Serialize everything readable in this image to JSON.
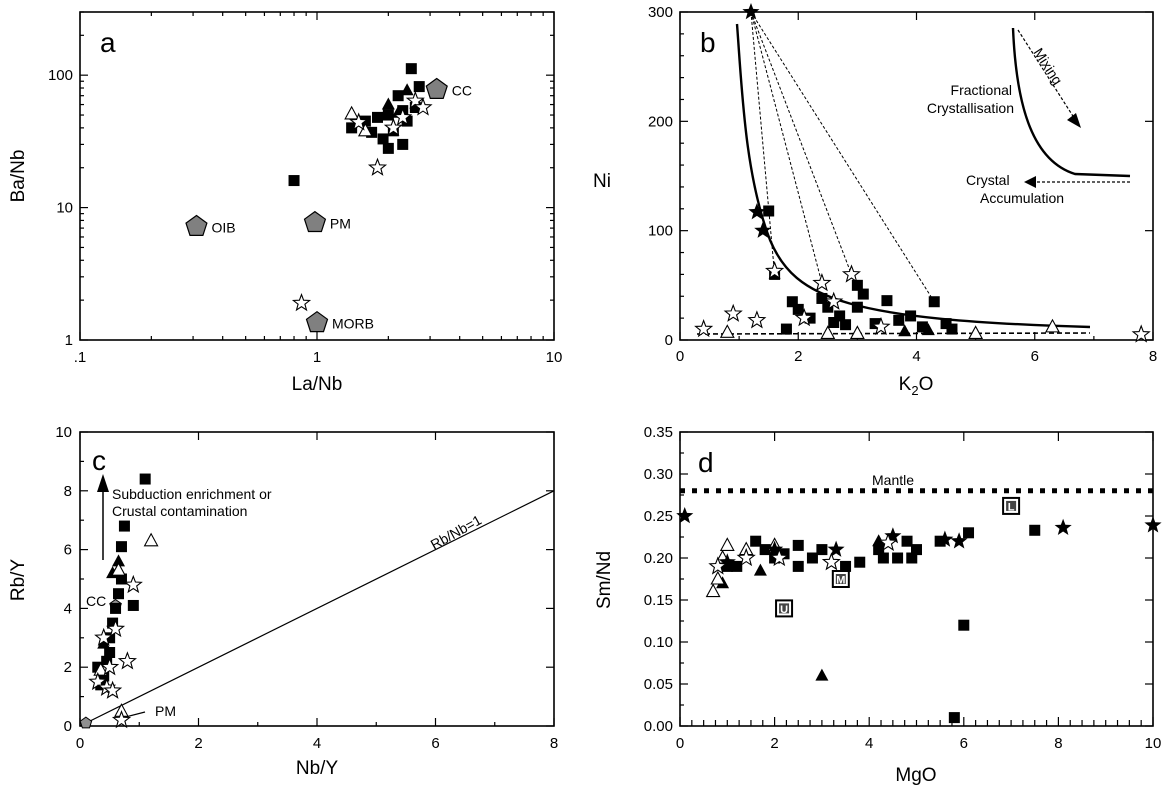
{
  "chart_data": [
    {
      "panel": "a",
      "type": "scatter",
      "xlabel": "La/Nb",
      "ylabel": "Ba/Nb",
      "xscale": "log",
      "yscale": "log",
      "xlim": [
        0.1,
        10
      ],
      "ylim": [
        1,
        300
      ],
      "xticks": [
        ".1",
        "1",
        "10"
      ],
      "yticks": [
        "1",
        "10",
        "100"
      ],
      "reference_points": [
        {
          "label": "CC",
          "x": 3.2,
          "y": 78
        },
        {
          "label": "OIB",
          "x": 0.31,
          "y": 7.2
        },
        {
          "label": "PM",
          "x": 0.98,
          "y": 7.7
        },
        {
          "label": "MORB",
          "x": 1.0,
          "y": 1.35
        }
      ],
      "series": [
        {
          "marker": "square",
          "points": [
            [
              0.8,
              16
            ],
            [
              1.4,
              40
            ],
            [
              1.6,
              45
            ],
            [
              1.8,
              48
            ],
            [
              1.9,
              33
            ],
            [
              2.0,
              28
            ],
            [
              2.1,
              38
            ],
            [
              2.2,
              70
            ],
            [
              2.3,
              54
            ],
            [
              2.4,
              45
            ],
            [
              2.5,
              112
            ],
            [
              2.7,
              82
            ],
            [
              2.6,
              57
            ],
            [
              2.0,
              50
            ],
            [
              1.7,
              37
            ],
            [
              2.3,
              30
            ]
          ]
        },
        {
          "marker": "filled-triangle",
          "points": [
            [
              2.0,
              60
            ],
            [
              2.2,
              52
            ],
            [
              2.4,
              77
            ]
          ]
        },
        {
          "marker": "open-triangle",
          "points": [
            [
              1.4,
              51
            ],
            [
              1.6,
              38
            ]
          ]
        },
        {
          "marker": "open-star",
          "points": [
            [
              0.86,
              1.9
            ],
            [
              1.8,
              20
            ],
            [
              1.5,
              44
            ],
            [
              2.3,
              48
            ],
            [
              2.6,
              64
            ],
            [
              2.8,
              57
            ],
            [
              2.1,
              40
            ]
          ]
        }
      ]
    },
    {
      "panel": "b",
      "type": "scatter",
      "xlabel": "K2O",
      "ylabel": "Ni",
      "xlim": [
        0,
        8
      ],
      "ylim": [
        0,
        300
      ],
      "xticks": [
        "0",
        "2",
        "4",
        "6",
        "8"
      ],
      "yticks": [
        "0",
        "100",
        "200",
        "300"
      ],
      "annotations": [
        "Mixing",
        "Fractional",
        "Crystallisation",
        "Crystal",
        "Accumulation"
      ],
      "series": [
        {
          "marker": "square",
          "points": [
            [
              1.5,
              118
            ],
            [
              1.6,
              60
            ],
            [
              1.8,
              10
            ],
            [
              1.9,
              35
            ],
            [
              2.0,
              28
            ],
            [
              2.2,
              20
            ],
            [
              2.4,
              38
            ],
            [
              2.5,
              30
            ],
            [
              2.7,
              22
            ],
            [
              2.8,
              14
            ],
            [
              3.0,
              50
            ],
            [
              3.1,
              42
            ],
            [
              3.3,
              15
            ],
            [
              3.5,
              36
            ],
            [
              3.7,
              18
            ],
            [
              3.9,
              22
            ],
            [
              4.1,
              12
            ],
            [
              4.3,
              35
            ],
            [
              4.5,
              15
            ],
            [
              4.6,
              10
            ],
            [
              3.0,
              30
            ],
            [
              2.6,
              16
            ]
          ]
        },
        {
          "marker": "filled-star",
          "points": [
            [
              1.2,
              300
            ],
            [
              1.3,
              117
            ],
            [
              1.4,
              100
            ]
          ]
        },
        {
          "marker": "filled-triangle",
          "points": [
            [
              3.8,
              8
            ],
            [
              4.2,
              9
            ]
          ]
        },
        {
          "marker": "open-triangle",
          "points": [
            [
              0.8,
              7
            ],
            [
              2.5,
              6
            ],
            [
              3.0,
              6
            ],
            [
              5.0,
              6
            ],
            [
              6.3,
              12
            ]
          ]
        },
        {
          "marker": "open-star",
          "points": [
            [
              0.4,
              10
            ],
            [
              0.9,
              24
            ],
            [
              1.3,
              18
            ],
            [
              1.6,
              63
            ],
            [
              2.1,
              20
            ],
            [
              2.4,
              52
            ],
            [
              2.6,
              35
            ],
            [
              2.9,
              60
            ],
            [
              3.4,
              12
            ],
            [
              7.8,
              5
            ]
          ]
        }
      ]
    },
    {
      "panel": "c",
      "type": "scatter",
      "xlabel": "Nb/Y",
      "ylabel": "Rb/Y",
      "xlim": [
        0,
        8
      ],
      "ylim": [
        0,
        10
      ],
      "xticks": [
        "0",
        "2",
        "4",
        "6",
        "8"
      ],
      "yticks": [
        "0",
        "2",
        "4",
        "6",
        "8",
        "10"
      ],
      "annotations": [
        "Subduction enrichment or",
        "Crustal contamination",
        "Rb/Nb=1"
      ],
      "reference_points": [
        {
          "label": "CC",
          "x": 0.6,
          "y": 4.1
        },
        {
          "label": "PM",
          "x": 0.1,
          "y": 0.1
        }
      ],
      "series": [
        {
          "marker": "square",
          "points": [
            [
              0.3,
              2.0
            ],
            [
              0.4,
              1.7
            ],
            [
              0.5,
              2.5
            ],
            [
              0.55,
              3.5
            ],
            [
              0.6,
              4.0
            ],
            [
              0.65,
              4.5
            ],
            [
              0.7,
              6.1
            ],
            [
              0.75,
              6.8
            ],
            [
              1.1,
              8.4
            ],
            [
              0.9,
              4.1
            ],
            [
              0.5,
              3.0
            ],
            [
              0.35,
              1.4
            ],
            [
              0.45,
              2.2
            ],
            [
              0.7,
              5.0
            ]
          ]
        },
        {
          "marker": "filled-triangle",
          "points": [
            [
              0.55,
              5.2
            ],
            [
              0.65,
              5.6
            ],
            [
              0.4,
              2.8
            ]
          ]
        },
        {
          "marker": "open-triangle",
          "points": [
            [
              1.2,
              6.3
            ],
            [
              0.65,
              5.3
            ],
            [
              0.7,
              0.5
            ],
            [
              0.35,
              1.9
            ]
          ]
        },
        {
          "marker": "open-star",
          "points": [
            [
              0.3,
              1.5
            ],
            [
              0.45,
              1.3
            ],
            [
              0.55,
              1.2
            ],
            [
              0.7,
              0.2
            ],
            [
              0.8,
              2.2
            ],
            [
              0.9,
              4.8
            ],
            [
              0.6,
              3.3
            ],
            [
              0.4,
              3.0
            ],
            [
              0.5,
              2.0
            ]
          ]
        }
      ]
    },
    {
      "panel": "d",
      "type": "scatter",
      "xlabel": "MgO",
      "ylabel": "Sm/Nd",
      "xlim": [
        0,
        10
      ],
      "ylim": [
        0,
        0.35
      ],
      "xticks": [
        "0",
        "2",
        "4",
        "6",
        "8",
        "10"
      ],
      "yticks": [
        "0.00",
        "0.05",
        "0.10",
        "0.15",
        "0.20",
        "0.25",
        "0.30",
        "0.35"
      ],
      "mantle_line": {
        "label": "Mantle",
        "y": 0.28
      },
      "boxed_points": [
        {
          "label": "L",
          "x": 7.0,
          "y": 0.262
        },
        {
          "label": "M",
          "x": 3.4,
          "y": 0.175
        },
        {
          "label": "U",
          "x": 2.2,
          "y": 0.14
        }
      ],
      "series": [
        {
          "marker": "square",
          "points": [
            [
              1.0,
              0.19
            ],
            [
              1.2,
              0.19
            ],
            [
              1.6,
              0.22
            ],
            [
              1.8,
              0.21
            ],
            [
              2.0,
              0.2
            ],
            [
              2.2,
              0.205
            ],
            [
              2.5,
              0.215
            ],
            [
              2.5,
              0.19
            ],
            [
              2.8,
              0.2
            ],
            [
              3.0,
              0.21
            ],
            [
              3.5,
              0.19
            ],
            [
              3.8,
              0.195
            ],
            [
              4.2,
              0.21
            ],
            [
              4.6,
              0.2
            ],
            [
              4.8,
              0.22
            ],
            [
              5.0,
              0.21
            ],
            [
              5.5,
              0.22
            ],
            [
              5.8,
              0.01
            ],
            [
              6.0,
              0.12
            ],
            [
              6.1,
              0.23
            ],
            [
              7.5,
              0.233
            ],
            [
              4.3,
              0.2
            ],
            [
              4.9,
              0.2
            ]
          ]
        },
        {
          "marker": "filled-triangle",
          "points": [
            [
              0.9,
              0.17
            ],
            [
              1.7,
              0.185
            ],
            [
              3.0,
              0.06
            ],
            [
              4.2,
              0.22
            ]
          ]
        },
        {
          "marker": "open-triangle",
          "points": [
            [
              0.7,
              0.16
            ],
            [
              0.8,
              0.175
            ],
            [
              0.9,
              0.2
            ],
            [
              1.0,
              0.215
            ],
            [
              1.4,
              0.21
            ],
            [
              2.0,
              0.215
            ]
          ]
        },
        {
          "marker": "filled-star",
          "points": [
            [
              0.1,
              0.25
            ],
            [
              1.0,
              0.195
            ],
            [
              2.0,
              0.21
            ],
            [
              3.3,
              0.21
            ],
            [
              4.5,
              0.226
            ],
            [
              5.6,
              0.222
            ],
            [
              5.9,
              0.22
            ],
            [
              8.1,
              0.236
            ],
            [
              10.0,
              0.239
            ]
          ]
        },
        {
          "marker": "open-star",
          "points": [
            [
              0.8,
              0.19
            ],
            [
              1.4,
              0.2
            ],
            [
              2.1,
              0.2
            ],
            [
              3.2,
              0.195
            ],
            [
              4.4,
              0.218
            ]
          ]
        }
      ]
    }
  ]
}
